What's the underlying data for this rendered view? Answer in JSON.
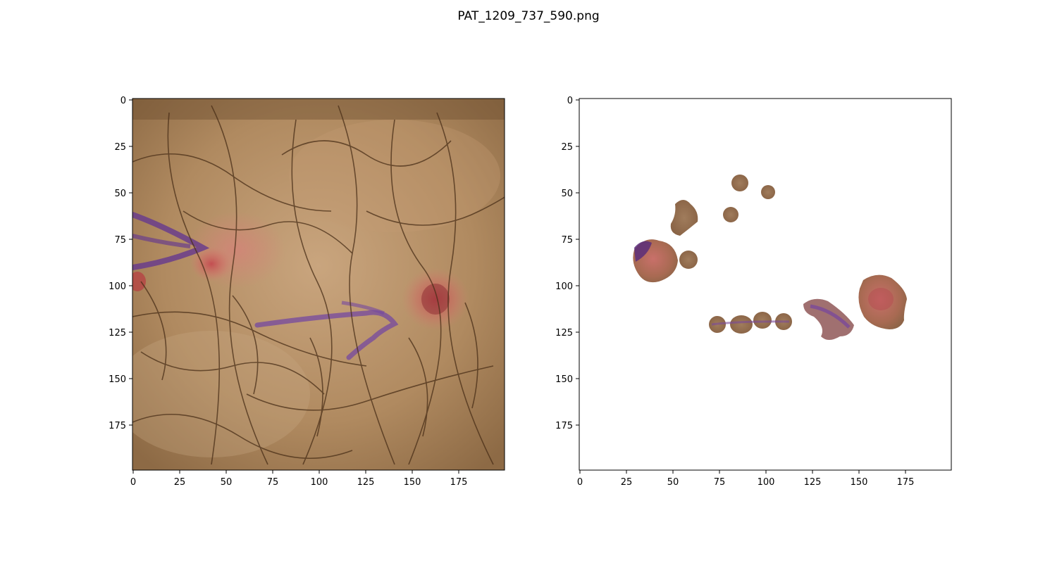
{
  "figure": {
    "title": "PAT_1209_737_590.png"
  },
  "axes": [
    {
      "name": "original-image",
      "xticks": [
        "0",
        "25",
        "50",
        "75",
        "100",
        "125",
        "150",
        "175"
      ],
      "yticks": [
        "0",
        "25",
        "50",
        "75",
        "100",
        "125",
        "150",
        "175"
      ]
    },
    {
      "name": "segmented-lesion",
      "xticks": [
        "0",
        "25",
        "50",
        "75",
        "100",
        "125",
        "150",
        "175"
      ],
      "yticks": [
        "0",
        "25",
        "50",
        "75",
        "100",
        "125",
        "150",
        "175"
      ]
    }
  ],
  "colors": {
    "skin": "#b0895f",
    "hair": "#4a2f18",
    "ink": "#6a3d8c",
    "lesion": "#c95a5e",
    "mask_bg": "#ffffff"
  }
}
